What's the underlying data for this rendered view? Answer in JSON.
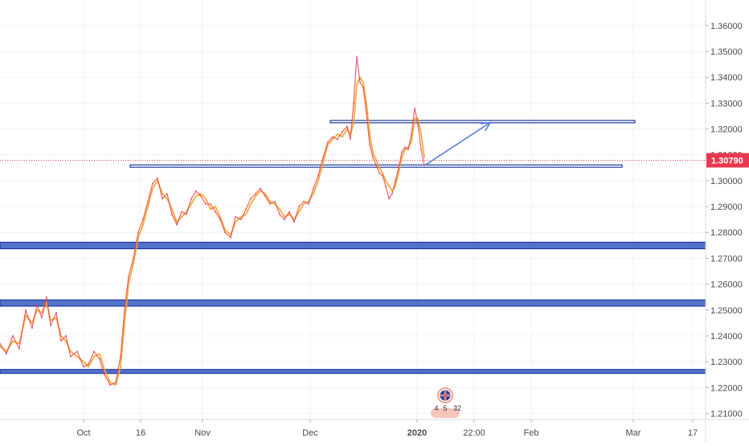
{
  "chart_data": {
    "type": "line",
    "title": "",
    "xlabel": "",
    "ylabel": "",
    "ylim": [
      1.2035,
      1.3659
    ],
    "y_ticks": [
      1.21,
      1.22,
      1.23,
      1.24,
      1.25,
      1.26,
      1.27,
      1.28,
      1.29,
      1.3,
      1.31,
      1.32,
      1.33,
      1.34,
      1.35,
      1.36
    ],
    "y_tick_labels": [
      "1.21000",
      "1.22000",
      "1.23000",
      "1.24000",
      "1.25000",
      "1.26000",
      "1.27000",
      "1.28000",
      "1.29000",
      "1.30000",
      "1.31000",
      "1.32000",
      "1.33000",
      "1.34000",
      "1.35000",
      "1.36000"
    ],
    "x_range": [
      0,
      878
    ],
    "x_ticks": [
      {
        "label": "Oct",
        "x": 104
      },
      {
        "label": "16",
        "x": 175
      },
      {
        "label": "Nov",
        "x": 252
      },
      {
        "label": "Dec",
        "x": 386
      },
      {
        "label": "2020",
        "x": 519,
        "bold": true
      },
      {
        "label": "22:00",
        "x": 590
      },
      {
        "label": "Feb",
        "x": 661
      },
      {
        "label": "Mar",
        "x": 788
      },
      {
        "label": "17",
        "x": 862
      }
    ],
    "last_price": {
      "value": 1.3079,
      "label": "1.30790",
      "color": "#e8384f"
    },
    "series": [
      {
        "name": "",
        "color": "#f5a623",
        "values": [
          [
            0,
            1.236
          ],
          [
            8,
            1.234
          ],
          [
            16,
            1.238
          ],
          [
            24,
            1.237
          ],
          [
            32,
            1.248
          ],
          [
            40,
            1.245
          ],
          [
            46,
            1.25
          ],
          [
            52,
            1.249
          ],
          [
            58,
            1.253
          ],
          [
            63,
            1.246
          ],
          [
            70,
            1.247
          ],
          [
            76,
            1.24
          ],
          [
            82,
            1.238
          ],
          [
            88,
            1.234
          ],
          [
            96,
            1.232
          ],
          [
            104,
            1.23
          ],
          [
            110,
            1.228
          ],
          [
            117,
            1.232
          ],
          [
            124,
            1.233
          ],
          [
            130,
            1.227
          ],
          [
            137,
            1.222
          ],
          [
            144,
            1.221
          ],
          [
            150,
            1.228
          ],
          [
            155,
            1.245
          ],
          [
            160,
            1.26
          ],
          [
            166,
            1.268
          ],
          [
            172,
            1.278
          ],
          [
            178,
            1.283
          ],
          [
            184,
            1.29
          ],
          [
            190,
            1.297
          ],
          [
            196,
            1.3
          ],
          [
            202,
            1.295
          ],
          [
            208,
            1.293
          ],
          [
            214,
            1.289
          ],
          [
            220,
            1.284
          ],
          [
            226,
            1.286
          ],
          [
            232,
            1.288
          ],
          [
            238,
            1.291
          ],
          [
            244,
            1.294
          ],
          [
            250,
            1.295
          ],
          [
            256,
            1.293
          ],
          [
            262,
            1.289
          ],
          [
            268,
            1.29
          ],
          [
            274,
            1.286
          ],
          [
            280,
            1.281
          ],
          [
            287,
            1.279
          ],
          [
            293,
            1.284
          ],
          [
            300,
            1.286
          ],
          [
            306,
            1.287
          ],
          [
            312,
            1.291
          ],
          [
            318,
            1.294
          ],
          [
            324,
            1.296
          ],
          [
            330,
            1.295
          ],
          [
            336,
            1.292
          ],
          [
            342,
            1.291
          ],
          [
            348,
            1.289
          ],
          [
            354,
            1.286
          ],
          [
            360,
            1.287
          ],
          [
            366,
            1.285
          ],
          [
            372,
            1.288
          ],
          [
            378,
            1.291
          ],
          [
            384,
            1.292
          ],
          [
            390,
            1.295
          ],
          [
            396,
            1.3
          ],
          [
            402,
            1.307
          ],
          [
            408,
            1.314
          ],
          [
            414,
            1.316
          ],
          [
            420,
            1.318
          ],
          [
            426,
            1.317
          ],
          [
            432,
            1.32
          ],
          [
            436,
            1.318
          ],
          [
            440,
            1.322
          ],
          [
            444,
            1.337
          ],
          [
            448,
            1.34
          ],
          [
            452,
            1.338
          ],
          [
            456,
            1.33
          ],
          [
            460,
            1.318
          ],
          [
            464,
            1.311
          ],
          [
            468,
            1.308
          ],
          [
            472,
            1.305
          ],
          [
            476,
            1.303
          ],
          [
            480,
            1.3
          ],
          [
            484,
            1.298
          ],
          [
            488,
            1.296
          ],
          [
            492,
            1.298
          ],
          [
            496,
            1.303
          ],
          [
            500,
            1.309
          ],
          [
            504,
            1.312
          ],
          [
            508,
            1.313
          ],
          [
            512,
            1.315
          ],
          [
            516,
            1.324
          ],
          [
            520,
            1.324
          ],
          [
            524,
            1.318
          ],
          [
            528,
            1.309
          ]
        ]
      },
      {
        "name": "",
        "color": "#e8384f",
        "values": [
          [
            0,
            1.237
          ],
          [
            8,
            1.233
          ],
          [
            16,
            1.24
          ],
          [
            24,
            1.235
          ],
          [
            32,
            1.25
          ],
          [
            40,
            1.243
          ],
          [
            46,
            1.252
          ],
          [
            52,
            1.247
          ],
          [
            58,
            1.255
          ],
          [
            63,
            1.244
          ],
          [
            70,
            1.249
          ],
          [
            76,
            1.238
          ],
          [
            82,
            1.24
          ],
          [
            88,
            1.232
          ],
          [
            96,
            1.234
          ],
          [
            104,
            1.228
          ],
          [
            110,
            1.229
          ],
          [
            117,
            1.234
          ],
          [
            124,
            1.231
          ],
          [
            130,
            1.225
          ],
          [
            137,
            1.221
          ],
          [
            144,
            1.222
          ],
          [
            150,
            1.232
          ],
          [
            155,
            1.25
          ],
          [
            160,
            1.263
          ],
          [
            166,
            1.27
          ],
          [
            172,
            1.28
          ],
          [
            178,
            1.285
          ],
          [
            184,
            1.292
          ],
          [
            190,
            1.299
          ],
          [
            196,
            1.301
          ],
          [
            202,
            1.293
          ],
          [
            208,
            1.295
          ],
          [
            214,
            1.287
          ],
          [
            220,
            1.283
          ],
          [
            226,
            1.288
          ],
          [
            232,
            1.287
          ],
          [
            238,
            1.293
          ],
          [
            244,
            1.296
          ],
          [
            250,
            1.294
          ],
          [
            256,
            1.291
          ],
          [
            262,
            1.291
          ],
          [
            268,
            1.288
          ],
          [
            274,
            1.285
          ],
          [
            280,
            1.28
          ],
          [
            287,
            1.278
          ],
          [
            293,
            1.286
          ],
          [
            300,
            1.285
          ],
          [
            306,
            1.289
          ],
          [
            312,
            1.293
          ],
          [
            318,
            1.295
          ],
          [
            324,
            1.297
          ],
          [
            330,
            1.294
          ],
          [
            336,
            1.291
          ],
          [
            342,
            1.292
          ],
          [
            348,
            1.287
          ],
          [
            354,
            1.285
          ],
          [
            360,
            1.288
          ],
          [
            366,
            1.284
          ],
          [
            372,
            1.29
          ],
          [
            378,
            1.292
          ],
          [
            384,
            1.291
          ],
          [
            390,
            1.297
          ],
          [
            396,
            1.302
          ],
          [
            402,
            1.309
          ],
          [
            408,
            1.315
          ],
          [
            414,
            1.317
          ],
          [
            420,
            1.316
          ],
          [
            426,
            1.319
          ],
          [
            432,
            1.321
          ],
          [
            436,
            1.316
          ],
          [
            440,
            1.33
          ],
          [
            444,
            1.348
          ],
          [
            448,
            1.338
          ],
          [
            452,
            1.336
          ],
          [
            456,
            1.326
          ],
          [
            460,
            1.314
          ],
          [
            464,
            1.309
          ],
          [
            468,
            1.306
          ],
          [
            472,
            1.303
          ],
          [
            476,
            1.302
          ],
          [
            480,
            1.298
          ],
          [
            484,
            1.293
          ],
          [
            488,
            1.295
          ],
          [
            492,
            1.3
          ],
          [
            496,
            1.305
          ],
          [
            500,
            1.311
          ],
          [
            504,
            1.313
          ],
          [
            508,
            1.312
          ],
          [
            512,
            1.318
          ],
          [
            516,
            1.328
          ],
          [
            520,
            1.322
          ],
          [
            524,
            1.312
          ],
          [
            528,
            1.306
          ]
        ]
      }
    ],
    "grid": true,
    "legend": "none",
    "annotations": {
      "zones": [
        {
          "x0": 0,
          "x1": 878,
          "y0": 1.2737,
          "y1": 1.2762,
          "filled": true
        },
        {
          "x0": 0,
          "x1": 878,
          "y0": 1.2515,
          "y1": 1.2539,
          "filled": true
        },
        {
          "x0": 0,
          "x1": 878,
          "y0": 1.2255,
          "y1": 1.227,
          "filled": true
        },
        {
          "x0": 162,
          "x1": 774,
          "y0": 1.3052,
          "y1": 1.3061,
          "filled": false
        },
        {
          "x0": 411,
          "x1": 790,
          "y0": 1.3224,
          "y1": 1.3233,
          "filled": false
        }
      ],
      "arrow": {
        "x0": 529,
        "y0": 1.306,
        "x1": 610,
        "y1": 1.3225
      },
      "colors": {
        "zone_fill": "#3f64c4",
        "zone_stroke": "#1b38a0",
        "arrow": "#5b7fdc"
      }
    },
    "events": {
      "flag_icon": "uk-flag-icon",
      "flag_x": 554,
      "labels": [
        "4",
        "5",
        "32"
      ],
      "color": "#f0a08f"
    }
  }
}
